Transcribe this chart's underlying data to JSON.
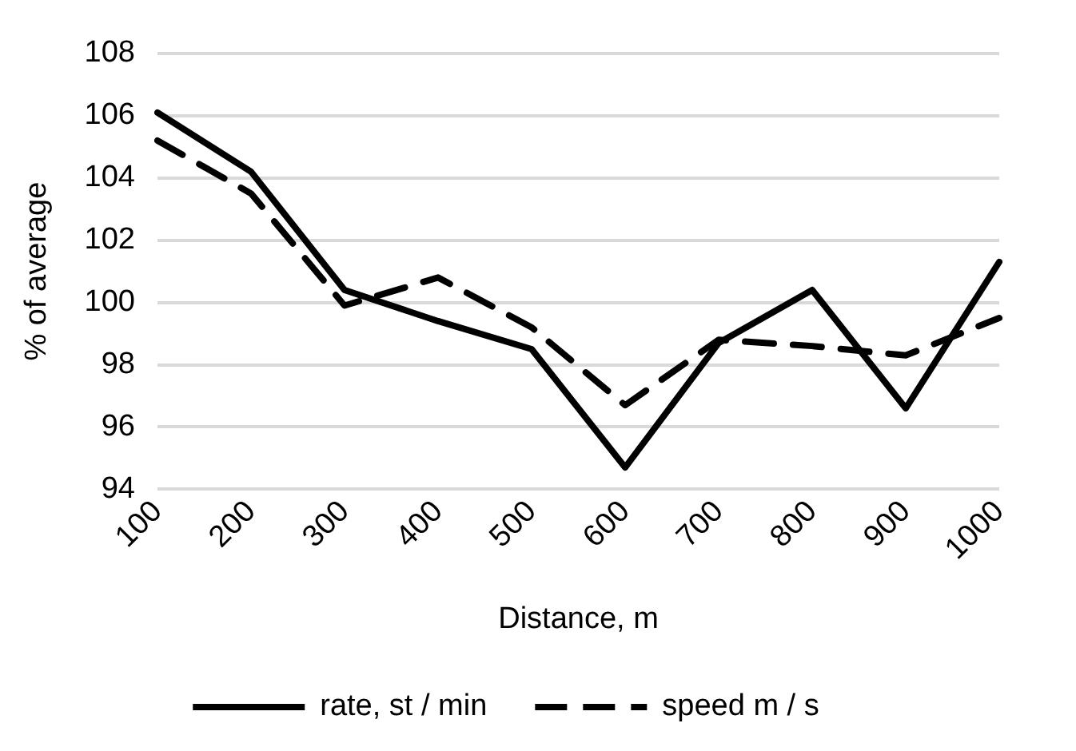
{
  "chart_data": {
    "type": "line",
    "xlabel": "Distance, m",
    "ylabel": "% of average",
    "categories": [
      "100",
      "200",
      "300",
      "400",
      "500",
      "600",
      "700",
      "800",
      "900",
      "1000"
    ],
    "series": [
      {
        "name": "rate, st / min",
        "color": "#000000",
        "line_style": "solid",
        "values": [
          106.1,
          104.2,
          100.4,
          99.4,
          98.5,
          94.7,
          98.7,
          100.4,
          96.6,
          101.3
        ]
      },
      {
        "name": "speed m / s",
        "color": "#000000",
        "line_style": "dashed",
        "values": [
          105.2,
          103.5,
          99.9,
          100.8,
          99.2,
          96.7,
          98.8,
          98.6,
          98.3,
          99.5
        ]
      }
    ],
    "ylim": [
      94,
      108
    ],
    "yticks": [
      94,
      96,
      98,
      100,
      102,
      104,
      106,
      108
    ],
    "grid": "y",
    "legend": "bottom",
    "marker": "none"
  }
}
